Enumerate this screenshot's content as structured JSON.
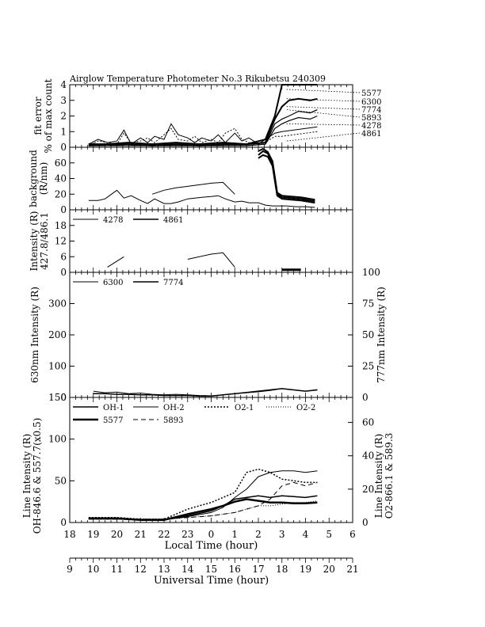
{
  "title": "Airglow Temperature Photometer No.3   Rikubetsu    240309",
  "chart_data": [
    {
      "type": "line",
      "panel": "fit-error",
      "ylabel_lines": [
        "fit error",
        "% of max count"
      ],
      "ylim": [
        0,
        4
      ],
      "yticks": [
        "0",
        "1",
        "2",
        "3",
        "4"
      ],
      "x_range_hour": [
        18,
        6
      ],
      "legend": [
        "5577",
        "6300",
        "7774",
        "5893",
        "4278",
        "4861"
      ],
      "series": [
        {
          "name": "5577",
          "x": [
            18.8,
            19.5,
            20.5,
            21.5,
            22.5,
            23.5,
            0.5,
            1.5,
            2.3,
            2.7,
            3.0,
            3.3,
            3.7,
            4.2,
            4.5
          ],
          "y": [
            0.2,
            0.2,
            0.3,
            0.2,
            0.3,
            0.2,
            0.3,
            0.2,
            0.5,
            2.0,
            4.0,
            4.0,
            4.0,
            4.0,
            4.0
          ]
        },
        {
          "name": "6300",
          "x": [
            18.8,
            19.5,
            20.5,
            21.5,
            22.5,
            23.5,
            0.5,
            1.5,
            2.3,
            2.7,
            3.0,
            3.3,
            3.7,
            4.2,
            4.5
          ],
          "y": [
            0.1,
            0.2,
            0.2,
            0.1,
            0.2,
            0.1,
            0.2,
            0.2,
            0.3,
            1.8,
            2.6,
            3.0,
            3.1,
            3.0,
            3.1
          ]
        },
        {
          "name": "7774",
          "x": [
            18.8,
            19.5,
            20.5,
            21.5,
            22.5,
            23.5,
            0.5,
            1.5,
            2.3,
            2.7,
            3.0,
            3.3,
            3.7,
            4.2,
            4.5
          ],
          "y": [
            0.1,
            0.1,
            0.2,
            0.1,
            0.1,
            0.1,
            0.1,
            0.1,
            0.2,
            1.5,
            1.8,
            2.0,
            2.3,
            2.2,
            2.4
          ]
        },
        {
          "name": "5893",
          "x": [
            18.8,
            19.5,
            20.5,
            21.5,
            22.5,
            23.5,
            0.5,
            1.5,
            2.3,
            2.7,
            3.0,
            3.3,
            3.7,
            4.2,
            4.5
          ],
          "y": [
            0.1,
            0.1,
            0.1,
            0.1,
            0.1,
            0.1,
            0.1,
            0.1,
            0.2,
            1.2,
            1.5,
            1.7,
            1.9,
            1.8,
            2.0
          ]
        },
        {
          "name": "4278",
          "x": [
            18.8,
            19.2,
            19.6,
            20.0,
            20.3,
            20.6,
            21.0,
            21.3,
            21.6,
            22.0,
            22.3,
            22.6,
            23.0,
            23.3,
            23.6,
            0.0,
            0.3,
            0.6,
            1.0,
            1.3,
            1.6,
            2.0,
            2.3,
            2.7,
            3.0,
            3.5,
            4.0,
            4.5
          ],
          "y": [
            0.2,
            0.5,
            0.3,
            0.4,
            1.1,
            0.2,
            0.6,
            0.3,
            0.7,
            0.5,
            1.5,
            0.8,
            0.6,
            0.3,
            0.6,
            0.4,
            0.8,
            0.3,
            0.9,
            0.4,
            0.6,
            0.2,
            0.5,
            0.9,
            1.0,
            1.1,
            1.2,
            1.3
          ]
        },
        {
          "name": "4861",
          "x": [
            18.8,
            19.2,
            19.6,
            20.0,
            20.3,
            20.6,
            21.0,
            21.3,
            21.6,
            22.0,
            22.3,
            22.6,
            23.0,
            23.3,
            23.6,
            0.0,
            0.3,
            0.6,
            1.0,
            1.3,
            1.6,
            2.0,
            2.3,
            2.7,
            3.0,
            3.5,
            4.0,
            4.5
          ],
          "y": [
            0.1,
            0.4,
            0.3,
            0.2,
            0.9,
            0.3,
            0.4,
            0.6,
            0.3,
            0.8,
            1.2,
            0.5,
            0.4,
            0.7,
            0.3,
            0.5,
            0.3,
            0.9,
            1.2,
            0.5,
            0.3,
            0.2,
            0.3,
            0.7,
            0.7,
            0.8,
            0.9,
            1.0
          ]
        }
      ]
    },
    {
      "type": "line",
      "panel": "background",
      "ylabel_lines": [
        "background",
        "(R/nm)"
      ],
      "ylim": [
        0,
        80
      ],
      "yticks": [
        "0",
        "20",
        "40",
        "60"
      ],
      "series": [
        {
          "x": [
            18.8,
            19.2,
            19.5,
            20.0,
            20.3,
            20.6,
            21.0,
            21.3,
            21.6,
            22.0,
            22.3,
            22.6,
            23.0,
            23.3,
            23.6,
            0.0,
            0.3,
            0.6,
            1.0,
            1.3,
            1.6,
            2.0,
            2.3,
            2.6,
            2.9,
            3.2,
            3.6,
            4.0,
            4.4
          ],
          "y": [
            12,
            12,
            14,
            25,
            15,
            18,
            12,
            8,
            14,
            8,
            8,
            10,
            14,
            15,
            16,
            17,
            18,
            14,
            10,
            11,
            9,
            9,
            6,
            5,
            5,
            5,
            4,
            4,
            3
          ]
        },
        {
          "x": [
            21.5,
            22.0,
            22.5,
            23.0,
            23.5,
            0.0,
            0.5,
            1.0
          ],
          "y": [
            20,
            25,
            28,
            30,
            32,
            34,
            35,
            20
          ]
        },
        {
          "x": [
            2.0,
            2.2,
            2.4,
            2.6,
            2.8,
            3.0,
            3.4,
            3.8,
            4.2,
            4.4
          ],
          "y": [
            70,
            75,
            72,
            60,
            20,
            16,
            15,
            14,
            12,
            11
          ]
        },
        {
          "x": [
            2.0,
            2.2,
            2.4,
            2.6,
            2.8,
            3.0,
            3.4,
            3.8,
            4.2,
            4.4
          ],
          "y": [
            75,
            78,
            74,
            62,
            22,
            18,
            17,
            16,
            14,
            13
          ]
        },
        {
          "x": [
            2.0,
            2.2,
            2.4,
            2.6,
            2.8,
            3.0,
            3.4,
            3.8,
            4.2,
            4.4
          ],
          "y": [
            66,
            70,
            68,
            56,
            18,
            14,
            13,
            12,
            10,
            9
          ]
        }
      ]
    },
    {
      "type": "line",
      "panel": "blue-lines",
      "ylabel_lines": [
        "Intensity (R)",
        "427.8/486.1"
      ],
      "ylim": [
        0,
        24
      ],
      "yticks": [
        "0",
        "6",
        "12",
        "18"
      ],
      "legend": [
        "4278",
        "4861"
      ],
      "series": [
        {
          "name": "4278",
          "x": [
            19.6,
            20.3
          ],
          "y": [
            2,
            6
          ]
        },
        {
          "name": "4278",
          "x": [
            23.0,
            0.0,
            0.5,
            1.0
          ],
          "y": [
            5,
            7,
            7.5,
            2
          ]
        },
        {
          "name": "4861",
          "x": [
            3.0,
            3.8
          ],
          "y": [
            1.0,
            1.0
          ]
        }
      ]
    },
    {
      "type": "line",
      "panel": "red-lines",
      "ylabel_left": "630nm Intensity (R)",
      "ylabel_right": "777nm Intensity (R)",
      "ylim_left": [
        0,
        400
      ],
      "ylim_right": [
        0,
        100
      ],
      "yticks_left": [
        "0",
        "100",
        "200",
        "300"
      ],
      "yticks_right": [
        "0",
        "25",
        "50",
        "75",
        "100"
      ],
      "legend": [
        "6300",
        "7774"
      ],
      "series": [
        {
          "name": "6300",
          "x": [
            19.0,
            19.5,
            20.0,
            20.5,
            21.0,
            21.5,
            22.0,
            22.5,
            23.0,
            23.5,
            0.0,
            0.5,
            1.0,
            1.5,
            2.0,
            2.5,
            3.0,
            3.5,
            4.0,
            4.5
          ],
          "y": [
            20,
            15,
            17,
            12,
            14,
            10,
            8,
            10,
            8,
            6,
            5,
            8,
            12,
            15,
            18,
            22,
            28,
            24,
            20,
            25
          ]
        },
        {
          "name": "7774",
          "x": [
            19.0,
            19.5,
            20.0,
            20.5,
            21.0,
            21.5,
            22.0,
            22.5,
            23.0,
            23.5,
            0.0,
            0.5,
            1.0,
            1.5,
            2.0,
            2.5,
            3.0,
            3.5,
            4.0,
            4.5
          ],
          "y": [
            3,
            3,
            2.5,
            2.5,
            2,
            2,
            1.5,
            1.5,
            1.5,
            1,
            1,
            2,
            3,
            4,
            5,
            6,
            7,
            6,
            5,
            6
          ]
        }
      ]
    },
    {
      "type": "line",
      "panel": "line-intensity",
      "ylabel_left_lines": [
        "Line Intensity (R)",
        "OH-846.6 & 557.7(x0.5)"
      ],
      "ylabel_right_lines": [
        "Line Intensity (R)",
        "O2-866.1 & 589.3"
      ],
      "ylim_left": [
        0,
        150
      ],
      "ylim_right": [
        0,
        75
      ],
      "yticks_left": [
        "0",
        "50",
        "100",
        "150"
      ],
      "yticks_right": [
        "0",
        "20",
        "40",
        "60"
      ],
      "legend": [
        "OH-1",
        "OH-2",
        "O2-1",
        "O2-2",
        "5577",
        "5893"
      ],
      "series": [
        {
          "name": "OH-1",
          "x": [
            18.8,
            20.0,
            21.0,
            22.0,
            23.0,
            0.0,
            0.5,
            1.0,
            1.5,
            2.0,
            2.5,
            3.0,
            3.5,
            4.0,
            4.5
          ],
          "y": [
            5,
            5,
            3,
            3,
            8,
            14,
            20,
            28,
            30,
            32,
            30,
            32,
            31,
            30,
            32
          ]
        },
        {
          "name": "OH-2",
          "x": [
            18.8,
            20.0,
            21.0,
            22.0,
            23.0,
            0.0,
            0.5,
            1.0,
            1.5,
            2.0,
            2.5,
            3.0,
            3.5,
            4.0,
            4.5
          ],
          "y": [
            4,
            4,
            3,
            3,
            7,
            12,
            18,
            30,
            40,
            55,
            60,
            62,
            62,
            60,
            62
          ]
        },
        {
          "name": "O2-1",
          "x": [
            18.8,
            20.0,
            21.0,
            22.0,
            22.5,
            23.0,
            23.5,
            0.0,
            0.5,
            1.0,
            1.5,
            2.0,
            2.5,
            3.0,
            3.5,
            4.0,
            4.5
          ],
          "y": [
            3,
            3,
            2,
            2,
            5,
            8,
            10,
            12,
            15,
            18,
            30,
            32,
            30,
            26,
            25,
            24,
            24
          ]
        },
        {
          "name": "O2-2",
          "x": [
            18.8,
            20.0,
            21.0,
            22.0,
            23.0,
            0.0,
            0.5,
            1.0,
            1.5,
            2.0,
            2.5,
            3.0,
            3.5,
            4.0,
            4.5
          ],
          "y": [
            2,
            2,
            2,
            2,
            3,
            4,
            5,
            6,
            8,
            10,
            10,
            11,
            12,
            12,
            13
          ]
        },
        {
          "name": "5577",
          "x": [
            18.8,
            20.0,
            21.0,
            22.0,
            23.0,
            0.0,
            0.5,
            1.0,
            1.5,
            2.0,
            2.5,
            3.0,
            3.5,
            4.0,
            4.5
          ],
          "y": [
            5,
            5,
            3,
            3,
            10,
            16,
            20,
            25,
            28,
            26,
            24,
            24,
            23,
            23,
            24
          ]
        },
        {
          "name": "5893",
          "x": [
            18.8,
            20.0,
            21.0,
            22.0,
            23.0,
            0.0,
            0.5,
            1.0,
            1.5,
            2.0,
            2.5,
            3.0,
            3.5,
            4.0,
            4.5
          ],
          "y": [
            2,
            2,
            2,
            2,
            3,
            4,
            5,
            6,
            8,
            10,
            14,
            22,
            24,
            22,
            24
          ]
        }
      ]
    }
  ],
  "x_axes": {
    "local": {
      "label": "Local Time (hour)",
      "ticks": [
        "18",
        "19",
        "20",
        "21",
        "22",
        "23",
        "0",
        "1",
        "2",
        "3",
        "4",
        "5",
        "6"
      ]
    },
    "universal": {
      "label": "Universal Time (hour)",
      "ticks": [
        "9",
        "10",
        "11",
        "12",
        "13",
        "14",
        "15",
        "16",
        "17",
        "18",
        "19",
        "20",
        "21"
      ]
    }
  }
}
